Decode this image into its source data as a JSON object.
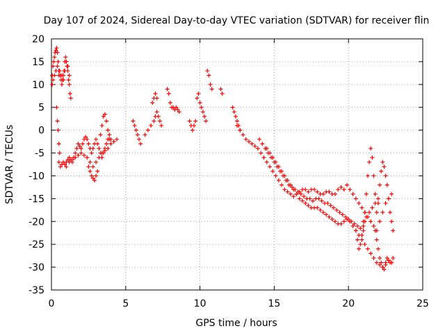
{
  "chart_data": {
    "type": "scatter",
    "title": "Day 107 of 2024, Sidereal Day-to-day VTEC variation (SDTVAR) for receiver flin",
    "xlabel": "GPS time / hours",
    "ylabel": "SDTVAR / TECUs",
    "xlim": [
      0,
      25
    ],
    "ylim": [
      -35,
      20
    ],
    "xticks": [
      0,
      5,
      10,
      15,
      20,
      25
    ],
    "yticks": [
      -35,
      -30,
      -25,
      -20,
      -15,
      -10,
      -5,
      0,
      5,
      10,
      15,
      20
    ],
    "xtick_labels": [
      "0",
      "5",
      "10",
      "15",
      "20",
      "25"
    ],
    "ytick_labels": [
      "-35",
      "-30",
      "-25",
      "-20",
      "-15",
      "-10",
      "-5",
      "0",
      "5",
      "10",
      "15",
      "20"
    ],
    "grid": true,
    "marker": "plus",
    "color": "#ff0000",
    "series": [
      {
        "name": "SDTVAR",
        "x": [
          0.05,
          0.1,
          0.15,
          0.2,
          0.25,
          0.3,
          0.35,
          0.4,
          0.45,
          0.5,
          0.55,
          0.6,
          0.65,
          0.7,
          0.75,
          0.8,
          0.85,
          0.9,
          0.95,
          1.0,
          1.05,
          1.1,
          1.15,
          1.2,
          1.25,
          1.3,
          0.05,
          0.1,
          0.2,
          0.3,
          0.4,
          0.5,
          0.6,
          0.7,
          0.8,
          0.9,
          1.0,
          1.1,
          1.2,
          0.35,
          0.4,
          0.45,
          0.5,
          0.55,
          0.5,
          0.6,
          0.7,
          0.8,
          0.9,
          1.0,
          1.1,
          1.2,
          1.3,
          1.4,
          1.5,
          1.6,
          1.7,
          1.8,
          1.9,
          2.0,
          2.1,
          2.2,
          2.3,
          2.4,
          2.5,
          2.6,
          2.7,
          2.8,
          2.9,
          3.0,
          3.1,
          3.2,
          3.3,
          3.4,
          3.5,
          3.6,
          3.7,
          3.8,
          3.9,
          4.0,
          1.0,
          1.2,
          1.4,
          1.6,
          1.8,
          2.0,
          2.2,
          2.4,
          2.6,
          2.8,
          3.0,
          3.2,
          3.4,
          3.6,
          3.8,
          4.0,
          4.2,
          4.4,
          2.5,
          2.6,
          2.7,
          2.8,
          2.9,
          3.0,
          3.1,
          3.3,
          3.4,
          3.5,
          3.6,
          3.7,
          3.8,
          3.9,
          5.5,
          5.6,
          5.7,
          5.8,
          5.9,
          6.0,
          6.3,
          6.5,
          6.7,
          6.9,
          7.0,
          7.1,
          7.2,
          7.3,
          7.4,
          6.8,
          6.9,
          7.0,
          7.1,
          7.8,
          7.9,
          8.0,
          8.1,
          8.2,
          8.3,
          8.4,
          8.5,
          8.6,
          9.3,
          9.4,
          9.5,
          9.6,
          9.7,
          9.8,
          9.9,
          10.0,
          10.1,
          10.2,
          10.3,
          10.4,
          10.5,
          10.6,
          10.7,
          10.8,
          11.4,
          11.5,
          12.2,
          12.3,
          12.4,
          12.5,
          12.6,
          12.7,
          12.5,
          12.7,
          12.9,
          13.1,
          13.3,
          13.5,
          13.7,
          13.9,
          14.1,
          14.3,
          14.5,
          14.7,
          14.9,
          15.1,
          15.3,
          15.5,
          15.7,
          15.9,
          16.1,
          16.3,
          16.5,
          16.7,
          16.9,
          17.1,
          17.3,
          17.5,
          17.7,
          17.9,
          18.1,
          18.3,
          18.5,
          18.7,
          18.9,
          19.1,
          19.3,
          19.5,
          19.7,
          19.9,
          20.1,
          20.3,
          20.5,
          20.7,
          20.9,
          21.1,
          21.3,
          21.5,
          21.7,
          21.9,
          22.1,
          22.3,
          22.5,
          22.7,
          22.9,
          14.0,
          14.2,
          14.4,
          14.6,
          14.8,
          15.0,
          15.2,
          15.4,
          15.6,
          15.8,
          16.0,
          16.2,
          16.4,
          16.6,
          16.8,
          17.0,
          17.2,
          17.4,
          17.6,
          17.8,
          18.0,
          18.2,
          18.4,
          18.6,
          18.8,
          19.0,
          19.2,
          19.4,
          19.6,
          19.8,
          20.0,
          20.2,
          20.4,
          20.6,
          20.8,
          21.0,
          21.2,
          21.4,
          21.6,
          21.8,
          22.0,
          14.5,
          14.7,
          14.9,
          15.1,
          15.3,
          15.5,
          15.7,
          15.9,
          16.1,
          16.3,
          16.5,
          16.7,
          16.9,
          17.1,
          17.3,
          17.5,
          17.7,
          17.9,
          18.1,
          18.3,
          18.5,
          18.7,
          18.9,
          19.1,
          19.3,
          19.5,
          19.7,
          19.9,
          20.1,
          20.3,
          20.5,
          20.7,
          20.9,
          21.1,
          21.3,
          21.5,
          21.7,
          21.9,
          22.1,
          22.3,
          22.5,
          22.7,
          22.9,
          21.0,
          21.1,
          21.2,
          21.3,
          21.4,
          21.5,
          21.6,
          21.7,
          21.8,
          21.9,
          22.0,
          22.1,
          22.2,
          22.3,
          22.4,
          22.5,
          22.6,
          22.7,
          22.8,
          22.9,
          23.0,
          20.5,
          20.6,
          20.7,
          20.8,
          20.9,
          21.0,
          21.1,
          21.8,
          21.9,
          22.0,
          22.1,
          22.2,
          22.3,
          22.4,
          22.5,
          22.6,
          22.7,
          22.8,
          22.9,
          23.0
        ],
        "y": [
          12,
          14,
          15,
          16,
          17,
          17.5,
          18,
          17,
          15,
          12,
          13,
          12,
          11,
          10,
          11,
          12,
          13,
          15,
          16,
          15,
          14,
          13,
          11,
          10,
          8,
          7,
          10,
          11,
          12,
          13,
          14,
          13,
          12,
          12,
          11,
          13,
          15,
          14,
          12,
          5,
          2,
          0,
          -3,
          -5,
          -7,
          -8,
          -7.5,
          -7,
          -7.5,
          -7,
          -6.5,
          -6,
          -6.5,
          -7,
          -6,
          -5,
          -4,
          -3,
          -3.5,
          -4,
          -3,
          -2,
          -1.5,
          -2,
          -3,
          -4,
          -5,
          -4,
          -3,
          -2,
          -3,
          -4,
          -5,
          -6,
          -5,
          -4,
          -3,
          -2,
          -1,
          -2,
          -8,
          -7,
          -6.5,
          -6,
          -5.5,
          -5,
          -5.5,
          -6,
          -7,
          -8,
          -7,
          -6,
          -5,
          -4.5,
          -4,
          -3,
          -2.5,
          -2,
          -8,
          -9,
          -10,
          -10.5,
          -11,
          -10,
          -9,
          -1,
          1,
          3,
          3.5,
          2,
          0,
          -2,
          2,
          1,
          0,
          -1,
          -2,
          -3,
          -1,
          0,
          1,
          2,
          3,
          4,
          3,
          2,
          1,
          6,
          7,
          8,
          7,
          9,
          8,
          6,
          5,
          5,
          4.5,
          5,
          4.5,
          4,
          2,
          1,
          0,
          1,
          2,
          7,
          8,
          6,
          5,
          4,
          3,
          2,
          13,
          12,
          10,
          9,
          9,
          8,
          5,
          4,
          3,
          2,
          1,
          0,
          1,
          0,
          -1,
          -2,
          -2.5,
          -3,
          -3.5,
          -4,
          -5,
          -6,
          -7,
          -8,
          -9,
          -10,
          -11,
          -12,
          -13,
          -13.5,
          -14,
          -14.5,
          -14,
          -13.5,
          -13,
          -13,
          -13.5,
          -13,
          -13,
          -13.5,
          -14,
          -14,
          -13.5,
          -13.5,
          -14,
          -14,
          -13,
          -12.5,
          -13,
          -12,
          -13,
          -14,
          -15,
          -16,
          -17,
          -18,
          -19,
          -20,
          -21,
          -22,
          -20,
          -18,
          -16,
          -15,
          -14,
          -2,
          -3,
          -4,
          -5,
          -6,
          -7,
          -8,
          -9,
          -10,
          -11,
          -12,
          -12.5,
          -13,
          -13.5,
          -14,
          -14.5,
          -15,
          -15,
          -15.5,
          -15,
          -15,
          -15.5,
          -16,
          -16,
          -16.5,
          -17,
          -17.5,
          -18,
          -18.5,
          -19,
          -19.5,
          -20,
          -20.5,
          -21,
          -21.5,
          -20,
          -19,
          -18,
          -17,
          -16,
          -15,
          -4,
          -5,
          -6,
          -7,
          -8,
          -9,
          -10,
          -11,
          -12,
          -13,
          -14,
          -15,
          -15.5,
          -16,
          -16.5,
          -17,
          -17,
          -17,
          -17.5,
          -18,
          -18.5,
          -19,
          -19.5,
          -20,
          -20.5,
          -20.5,
          -20,
          -19.5,
          -20,
          -21,
          -22,
          -23,
          -24,
          -25,
          -26,
          -27,
          -28,
          -29,
          -29.5,
          -30,
          -29,
          -28.5,
          -29,
          -22,
          -18,
          -14,
          -10,
          -7,
          -4,
          -6,
          -10,
          -14,
          -18,
          -16,
          -12,
          -9,
          -7,
          -8,
          -10,
          -12,
          -15,
          -18,
          -20,
          -22,
          -22,
          -24,
          -26,
          -25,
          -23,
          -21,
          -20,
          -22,
          -24,
          -26,
          -28,
          -29,
          -30,
          -30.5,
          -29.5,
          -28,
          -28.5,
          -29,
          -29,
          -28
        ]
      }
    ]
  }
}
